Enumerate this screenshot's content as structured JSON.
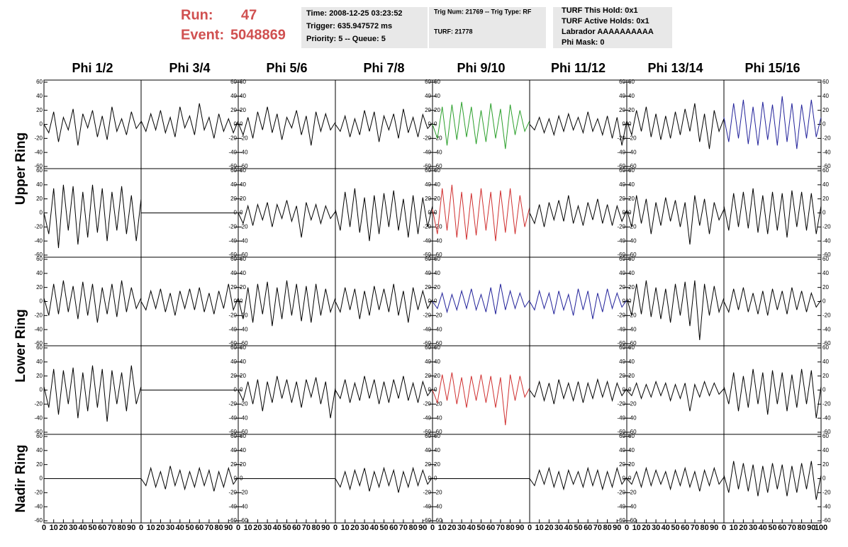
{
  "header": {
    "run_label": "Run:",
    "run": "47",
    "event_label": "Event:",
    "event": "5048869",
    "box1": [
      "Time: 2008-12-25 03:23:52",
      "Trigger: 635.947572 ms",
      "Priority: 5 -- Queue: 5"
    ],
    "box2": [
      "Trig Num: 21769 -- Trig Type: RF",
      "TURF: 21778"
    ],
    "box3": [
      "TURF This Hold: 0x1",
      "TURF Active Holds: 0x1",
      "Labrador AAAAAAAAAA",
      "Phi Mask: 0"
    ]
  },
  "columns": [
    "Phi 1/2",
    "Phi 3/4",
    "Phi 5/6",
    "Phi 7/8",
    "Phi 9/10",
    "Phi 11/12",
    "Phi 13/14",
    "Phi 15/16"
  ],
  "rings": [
    "Upper Ring",
    "Lower Ring",
    "Nadir Ring"
  ],
  "axes": {
    "xlim": [
      0,
      100
    ],
    "ylim": [
      -60,
      60
    ],
    "yticks": [
      -60,
      -40,
      -20,
      0,
      20,
      40,
      60
    ],
    "xticks": [
      0,
      10,
      20,
      30,
      40,
      50,
      60,
      70,
      80,
      90,
      100
    ],
    "x": [
      0,
      5,
      10,
      15,
      20,
      25,
      30,
      35,
      40,
      45,
      50,
      55,
      60,
      65,
      70,
      75,
      80,
      85,
      90,
      95,
      100
    ]
  },
  "chart_data": [
    {
      "type": "line",
      "color": "#000000",
      "values": [
        0,
        -12,
        18,
        -25,
        10,
        -8,
        22,
        -30,
        15,
        -5,
        20,
        -18,
        12,
        -22,
        25,
        -10,
        8,
        -15,
        18,
        -6,
        4
      ]
    },
    {
      "type": "line",
      "color": "#000000",
      "values": [
        5,
        -10,
        15,
        -8,
        20,
        -12,
        10,
        -18,
        25,
        -5,
        12,
        -15,
        30,
        -8,
        10,
        -20,
        15,
        -10,
        8,
        -12,
        5
      ]
    },
    {
      "type": "line",
      "color": "#000000",
      "values": [
        2,
        -15,
        10,
        -20,
        18,
        -8,
        25,
        -12,
        15,
        -22,
        10,
        -5,
        20,
        -15,
        12,
        -30,
        18,
        -10,
        15,
        -8,
        3
      ]
    },
    {
      "type": "line",
      "color": "#000000",
      "values": [
        0,
        -10,
        12,
        -18,
        8,
        -15,
        20,
        -10,
        18,
        -25,
        12,
        -8,
        15,
        -20,
        22,
        -12,
        10,
        -18,
        14,
        -6,
        2
      ]
    },
    {
      "type": "line",
      "color": "#2ca02c",
      "values": [
        0,
        -20,
        25,
        -30,
        28,
        -22,
        32,
        -18,
        25,
        -28,
        20,
        -25,
        30,
        -20,
        22,
        -35,
        28,
        -15,
        20,
        -10,
        5
      ]
    },
    {
      "type": "line",
      "color": "#000000",
      "values": [
        0,
        -8,
        10,
        -12,
        8,
        -15,
        12,
        -10,
        15,
        -8,
        10,
        -12,
        18,
        -10,
        8,
        -15,
        12,
        -20,
        10,
        -30,
        5
      ]
    },
    {
      "type": "line",
      "color": "#000000",
      "values": [
        5,
        -15,
        20,
        -10,
        25,
        -18,
        15,
        -22,
        12,
        -20,
        18,
        -15,
        22,
        -10,
        30,
        -25,
        15,
        -35,
        20,
        -10,
        8
      ]
    },
    {
      "type": "line",
      "color": "#22229a",
      "values": [
        10,
        -25,
        30,
        -20,
        35,
        -28,
        25,
        -30,
        32,
        -22,
        28,
        -30,
        40,
        -25,
        30,
        -35,
        28,
        -20,
        35,
        -18,
        10
      ]
    },
    {
      "type": "line",
      "color": "#000000",
      "values": [
        0,
        -30,
        35,
        -50,
        40,
        -25,
        38,
        -45,
        30,
        -35,
        40,
        -28,
        35,
        -40,
        30,
        -25,
        38,
        -30,
        25,
        -40,
        20
      ]
    },
    {
      "type": "line",
      "color": "#000000",
      "values": [
        0,
        0,
        0,
        0,
        0,
        0,
        0,
        0,
        0,
        0,
        0,
        0,
        0,
        0,
        0,
        0,
        0,
        0,
        0,
        0,
        0
      ]
    },
    {
      "type": "line",
      "color": "#000000",
      "values": [
        0,
        -15,
        10,
        -18,
        12,
        -10,
        15,
        -20,
        12,
        -8,
        18,
        -12,
        10,
        -35,
        15,
        -10,
        12,
        -15,
        10,
        -8,
        2
      ]
    },
    {
      "type": "line",
      "color": "#000000",
      "values": [
        5,
        -25,
        30,
        -20,
        35,
        -28,
        22,
        -40,
        25,
        -30,
        28,
        -20,
        32,
        -25,
        20,
        -35,
        25,
        -30,
        22,
        -20,
        10
      ]
    },
    {
      "type": "line",
      "color": "#d03030",
      "values": [
        5,
        -30,
        35,
        -25,
        40,
        -35,
        30,
        -38,
        28,
        -32,
        35,
        -25,
        30,
        -40,
        32,
        -28,
        35,
        -30,
        25,
        -20,
        8
      ]
    },
    {
      "type": "line",
      "color": "#000000",
      "values": [
        0,
        -15,
        12,
        -20,
        15,
        -10,
        18,
        -12,
        25,
        -15,
        10,
        -18,
        15,
        -10,
        20,
        -15,
        12,
        -18,
        10,
        -12,
        4
      ]
    },
    {
      "type": "line",
      "color": "#000000",
      "values": [
        5,
        -20,
        25,
        -15,
        20,
        -30,
        15,
        -18,
        22,
        -12,
        18,
        -20,
        15,
        -45,
        25,
        -18,
        20,
        -30,
        15,
        -10,
        5
      ]
    },
    {
      "type": "line",
      "color": "#000000",
      "values": [
        10,
        -25,
        28,
        -20,
        30,
        -22,
        35,
        -28,
        25,
        -30,
        30,
        -25,
        28,
        -35,
        32,
        -20,
        30,
        -25,
        28,
        -30,
        10
      ]
    },
    {
      "type": "line",
      "color": "#000000",
      "values": [
        5,
        -20,
        25,
        -18,
        30,
        -15,
        22,
        -25,
        28,
        -20,
        25,
        -30,
        20,
        -18,
        25,
        -22,
        30,
        -15,
        20,
        -10,
        5
      ]
    },
    {
      "type": "line",
      "color": "#000000",
      "values": [
        0,
        -12,
        15,
        -10,
        18,
        -15,
        12,
        -20,
        15,
        -10,
        18,
        -12,
        20,
        -15,
        12,
        -18,
        15,
        -10,
        25,
        -12,
        5
      ]
    },
    {
      "type": "line",
      "color": "#000000",
      "values": [
        5,
        -25,
        20,
        -30,
        25,
        -18,
        28,
        -35,
        20,
        -25,
        30,
        -20,
        25,
        -28,
        22,
        -30,
        25,
        -20,
        18,
        -15,
        5
      ]
    },
    {
      "type": "line",
      "color": "#000000",
      "values": [
        0,
        -15,
        20,
        -12,
        18,
        -25,
        15,
        -20,
        22,
        -12,
        18,
        -15,
        25,
        -20,
        15,
        -30,
        20,
        -12,
        15,
        -10,
        3
      ]
    },
    {
      "type": "line",
      "color": "#22229a",
      "values": [
        0,
        -10,
        12,
        -15,
        10,
        -12,
        15,
        -10,
        18,
        -12,
        10,
        -15,
        20,
        -18,
        25,
        -12,
        15,
        -10,
        12,
        -8,
        2
      ]
    },
    {
      "type": "line",
      "color": "#22229a",
      "values": [
        0,
        -12,
        15,
        -10,
        12,
        -18,
        15,
        -12,
        10,
        -20,
        18,
        -12,
        15,
        -25,
        12,
        -15,
        18,
        -10,
        12,
        -8,
        2
      ]
    },
    {
      "type": "line",
      "color": "#000000",
      "values": [
        5,
        -20,
        25,
        -18,
        30,
        -22,
        20,
        -25,
        18,
        -30,
        25,
        -20,
        28,
        -35,
        30,
        -55,
        25,
        -20,
        22,
        -15,
        5
      ]
    },
    {
      "type": "line",
      "color": "#000000",
      "values": [
        0,
        -15,
        18,
        -12,
        20,
        -15,
        12,
        -18,
        15,
        -20,
        18,
        -12,
        15,
        -18,
        20,
        -12,
        15,
        -15,
        12,
        -8,
        2
      ]
    },
    {
      "type": "line",
      "color": "#000000",
      "values": [
        5,
        -25,
        30,
        -35,
        28,
        -20,
        32,
        -40,
        25,
        -30,
        35,
        -25,
        30,
        -45,
        28,
        -20,
        25,
        -30,
        35,
        -20,
        5
      ]
    },
    {
      "type": "line",
      "color": "#000000",
      "values": [
        0,
        0,
        0,
        0,
        0,
        0,
        0,
        0,
        0,
        0,
        0,
        0,
        0,
        0,
        0,
        0,
        0,
        0,
        0,
        0,
        0
      ]
    },
    {
      "type": "line",
      "color": "#000000",
      "values": [
        0,
        -15,
        12,
        -20,
        15,
        -30,
        12,
        -18,
        20,
        -12,
        15,
        -18,
        12,
        -25,
        15,
        -10,
        18,
        -20,
        12,
        -40,
        3
      ]
    },
    {
      "type": "line",
      "color": "#000000",
      "values": [
        0,
        -12,
        15,
        -18,
        10,
        -15,
        20,
        -12,
        15,
        -20,
        12,
        -18,
        15,
        -12,
        20,
        -15,
        10,
        -18,
        12,
        -8,
        2
      ]
    },
    {
      "type": "line",
      "color": "#d03030",
      "values": [
        0,
        -18,
        22,
        -15,
        25,
        -20,
        18,
        -25,
        20,
        -15,
        22,
        -18,
        20,
        -25,
        18,
        -50,
        22,
        -15,
        20,
        -10,
        3
      ]
    },
    {
      "type": "line",
      "color": "#000000",
      "values": [
        0,
        -10,
        12,
        -15,
        10,
        -20,
        15,
        -12,
        10,
        -15,
        12,
        -18,
        10,
        -12,
        15,
        -10,
        12,
        -15,
        10,
        -8,
        2
      ]
    },
    {
      "type": "line",
      "color": "#000000",
      "values": [
        0,
        -8,
        10,
        -12,
        8,
        -10,
        12,
        -8,
        10,
        -15,
        8,
        -12,
        10,
        -30,
        8,
        -10,
        12,
        -8,
        10,
        -6,
        2
      ]
    },
    {
      "type": "line",
      "color": "#000000",
      "values": [
        5,
        -20,
        25,
        -30,
        20,
        -25,
        30,
        -20,
        25,
        -35,
        28,
        -20,
        25,
        -30,
        22,
        -25,
        30,
        -20,
        28,
        -40,
        5
      ]
    },
    {
      "type": "line",
      "color": "#000000",
      "values": [
        0,
        0,
        0,
        0,
        0,
        0,
        0,
        0,
        0,
        0,
        0,
        0,
        0,
        0,
        0,
        0,
        0,
        0,
        0,
        0,
        0
      ]
    },
    {
      "type": "line",
      "color": "#000000",
      "values": [
        0,
        -10,
        15,
        -12,
        10,
        -15,
        18,
        -10,
        12,
        -15,
        10,
        -12,
        15,
        -10,
        12,
        -18,
        10,
        -12,
        15,
        -8,
        2
      ]
    },
    {
      "type": "line",
      "color": "#000000",
      "values": [
        0,
        0,
        0,
        0,
        0,
        0,
        0,
        0,
        0,
        0,
        0,
        0,
        0,
        0,
        0,
        0,
        0,
        0,
        0,
        0,
        0
      ]
    },
    {
      "type": "line",
      "color": "#000000",
      "values": [
        0,
        -12,
        10,
        -15,
        12,
        -10,
        15,
        -18,
        10,
        -12,
        15,
        -10,
        12,
        -20,
        10,
        -12,
        15,
        -10,
        12,
        -8,
        2
      ]
    },
    {
      "type": "line",
      "color": "#000000",
      "values": [
        0,
        0,
        0,
        0,
        0,
        0,
        0,
        0,
        0,
        0,
        0,
        0,
        0,
        0,
        0,
        0,
        0,
        0,
        0,
        0,
        0
      ]
    },
    {
      "type": "line",
      "color": "#000000",
      "values": [
        0,
        -10,
        12,
        -8,
        15,
        -12,
        10,
        -15,
        12,
        -8,
        10,
        -12,
        15,
        -10,
        12,
        -15,
        10,
        -12,
        15,
        -8,
        2
      ]
    },
    {
      "type": "line",
      "color": "#000000",
      "values": [
        0,
        -8,
        10,
        -12,
        15,
        -10,
        12,
        -8,
        10,
        -15,
        12,
        -10,
        15,
        -12,
        10,
        -18,
        12,
        -10,
        15,
        -8,
        2
      ]
    },
    {
      "type": "line",
      "color": "#000000",
      "values": [
        5,
        -20,
        25,
        -15,
        22,
        -18,
        20,
        -25,
        18,
        -20,
        22,
        -15,
        20,
        -25,
        18,
        -20,
        22,
        -15,
        25,
        -30,
        5
      ]
    }
  ]
}
